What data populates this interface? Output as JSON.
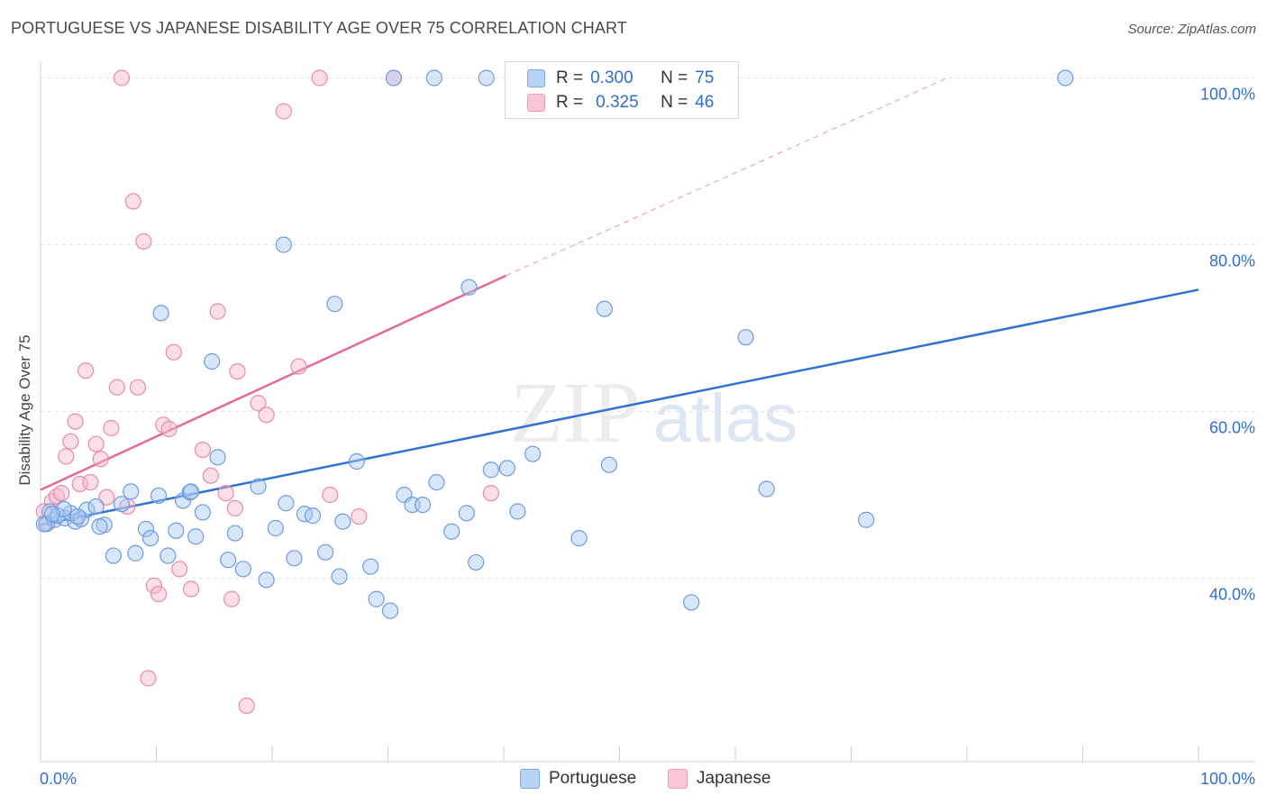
{
  "title": "PORTUGUESE VS JAPANESE DISABILITY AGE OVER 75 CORRELATION CHART",
  "source": "Source: ZipAtlas.com",
  "watermark": {
    "zip": "ZIP",
    "atlas": "atlas"
  },
  "legend": {
    "portuguese": {
      "r_label": "R =",
      "r_value": "0.300",
      "n_label": "N =",
      "n_value": "75"
    },
    "japanese": {
      "r_label": "R =",
      "r_value": "0.325",
      "n_label": "N =",
      "n_value": "46"
    }
  },
  "bottom_legend": {
    "portuguese": "Portuguese",
    "japanese": "Japanese"
  },
  "colors": {
    "portuguese_fill": "#a9c8f2",
    "portuguese_stroke": "#6e9be0",
    "portuguese_line": "#2f72d2",
    "japanese_fill": "#f6b9cb",
    "japanese_stroke": "#ea8aa7",
    "japanese_line": "#e46a92",
    "tick_label": "#2f6fd0"
  },
  "chart_data": {
    "type": "scatter",
    "title": "PORTUGUESE VS JAPANESE DISABILITY AGE OVER 75 CORRELATION CHART",
    "xlabel": "",
    "ylabel": "Disability Age Over 75",
    "xlim": [
      0,
      100
    ],
    "ylim": [
      18,
      102
    ],
    "x_tick_labels": [
      "0.0%",
      "100.0%"
    ],
    "y_ticks": [
      40,
      60,
      80,
      100
    ],
    "y_tick_labels": [
      "40.0%",
      "60.0%",
      "80.0%",
      "100.0%"
    ],
    "series": [
      {
        "name": "Portuguese",
        "x": [
          0.5,
          1.2,
          0.8,
          2.1,
          1.5,
          3.0,
          2.6,
          3.5,
          4.0,
          4.8,
          5.5,
          6.3,
          7.0,
          7.8,
          8.2,
          9.1,
          9.5,
          10.4,
          11.0,
          11.7,
          12.3,
          12.9,
          13.4,
          14.0,
          14.8,
          15.3,
          16.2,
          16.8,
          17.5,
          18.8,
          19.5,
          20.3,
          21.2,
          21.9,
          22.8,
          23.5,
          24.6,
          25.4,
          26.1,
          27.3,
          28.5,
          29.0,
          30.2,
          31.4,
          32.1,
          33.0,
          34.2,
          35.5,
          36.8,
          37.6,
          38.9,
          40.3,
          41.2,
          42.5,
          46.5,
          48.7,
          49.1,
          56.2,
          60.9,
          62.7,
          71.3,
          88.5,
          30.5,
          21.0,
          37.0,
          34.0,
          38.5,
          25.8,
          13.0,
          10.2,
          5.1,
          2.0,
          0.3,
          1.0,
          3.2
        ],
        "y": [
          46.5,
          47.0,
          48.0,
          47.2,
          47.5,
          46.8,
          47.8,
          47.1,
          48.2,
          48.6,
          46.4,
          42.7,
          48.9,
          50.4,
          43.0,
          45.9,
          44.8,
          71.8,
          42.7,
          45.7,
          49.3,
          50.3,
          45.0,
          47.9,
          66.0,
          54.5,
          42.2,
          45.4,
          41.1,
          51.0,
          39.8,
          46.0,
          49.0,
          42.4,
          47.7,
          47.5,
          43.1,
          72.9,
          46.8,
          54.0,
          41.4,
          37.5,
          36.1,
          50.0,
          48.8,
          48.8,
          51.5,
          45.6,
          47.8,
          41.9,
          53.0,
          53.2,
          48.0,
          54.9,
          44.8,
          72.3,
          53.6,
          37.1,
          68.9,
          50.7,
          47.0,
          100.0,
          100.0,
          80.0,
          74.9,
          100.0,
          100.0,
          40.2,
          50.4,
          49.9,
          46.2,
          48.3,
          46.5,
          47.7,
          47.4
        ]
      },
      {
        "name": "Japanese",
        "x": [
          0.3,
          0.6,
          1.0,
          1.4,
          1.8,
          2.2,
          2.6,
          3.0,
          3.4,
          3.9,
          4.3,
          4.8,
          5.2,
          5.7,
          6.1,
          6.6,
          7.0,
          7.5,
          8.0,
          8.4,
          8.9,
          9.3,
          9.8,
          10.2,
          10.6,
          11.1,
          11.5,
          12.0,
          13.0,
          14.0,
          14.7,
          15.3,
          16.0,
          16.5,
          17.0,
          17.8,
          18.8,
          19.5,
          21.0,
          22.3,
          24.1,
          27.5,
          30.5,
          38.9,
          16.8,
          25.0
        ],
        "y": [
          48.0,
          46.6,
          49.2,
          49.8,
          50.2,
          54.6,
          56.4,
          58.8,
          51.3,
          64.9,
          51.5,
          56.1,
          54.3,
          49.7,
          58.0,
          62.9,
          100.0,
          48.6,
          85.2,
          62.9,
          80.4,
          28.0,
          39.1,
          38.1,
          58.4,
          57.9,
          67.1,
          41.1,
          38.7,
          55.4,
          52.3,
          72.0,
          50.2,
          37.5,
          64.8,
          24.7,
          61.0,
          59.6,
          96.0,
          65.4,
          100.0,
          47.4,
          100.0,
          50.2,
          48.4,
          50.0
        ]
      }
    ],
    "trendlines": [
      {
        "name": "Portuguese",
        "x": [
          0,
          100
        ],
        "y": [
          46.4,
          74.6
        ]
      },
      {
        "name": "Japanese",
        "x": [
          0,
          40.2
        ],
        "y": [
          50.6,
          76.3
        ]
      },
      {
        "name": "Japanese (extrapolated)",
        "x": [
          40.2,
          78.3
        ],
        "y": [
          76.3,
          100.0
        ]
      }
    ]
  }
}
